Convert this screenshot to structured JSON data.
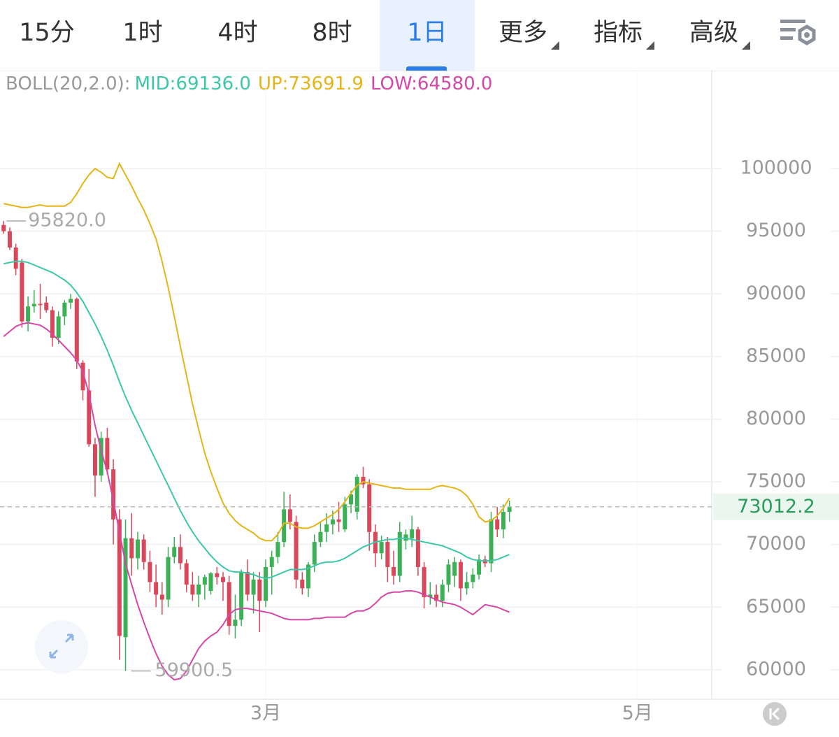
{
  "tabs": [
    "15分",
    "1时",
    "4时",
    "8时",
    "1日",
    "更多",
    "指标",
    "高级"
  ],
  "active_tab": "1日",
  "chart_data": {
    "type": "candlestick",
    "indicator": "BOLL(20,2.0):",
    "series": [
      {
        "name": "MID:69136.0",
        "color": "#3cc8a8",
        "values": [
          92400,
          92500,
          92600,
          92600,
          92500,
          92300,
          92100,
          91900,
          91700,
          91400,
          91100,
          90700,
          90100,
          89400,
          88500,
          87600,
          86600,
          85500,
          84300,
          83000,
          81800,
          80700,
          79700,
          78700,
          77700,
          76700,
          75700,
          74700,
          73700,
          72700,
          71800,
          71000,
          70300,
          69700,
          69100,
          68600,
          68200,
          67900,
          67800,
          67800,
          67700,
          67600,
          67400,
          67300,
          67400,
          67600,
          67800,
          68000,
          68000,
          68000,
          68100,
          68300,
          68500,
          68600,
          68600,
          68700,
          68900,
          69200,
          69500,
          69800,
          70000,
          70200,
          70300,
          70400,
          70400,
          70500,
          70500,
          70400,
          70300,
          70200,
          70100,
          70000,
          69900,
          69700,
          69500,
          69300,
          69000,
          68800,
          68700,
          68700,
          68700,
          68800,
          69000,
          69200
        ]
      },
      {
        "name": "UP:73691.9",
        "color": "#e6b416",
        "values": [
          97200,
          97100,
          97000,
          96900,
          96900,
          97000,
          97100,
          97000,
          97000,
          97000,
          97000,
          97300,
          98000,
          98800,
          99500,
          100000,
          99700,
          99300,
          99200,
          100400,
          99500,
          98600,
          97600,
          96700,
          95600,
          94400,
          92600,
          90500,
          88200,
          85800,
          83500,
          81200,
          79200,
          77300,
          75800,
          74500,
          73300,
          72500,
          71900,
          71500,
          71200,
          70900,
          70500,
          70300,
          70300,
          70800,
          71700,
          71700,
          71400,
          71300,
          71300,
          71500,
          71800,
          72100,
          72400,
          72800,
          73400,
          74100,
          74700,
          75000,
          74900,
          74800,
          74700,
          74600,
          74500,
          74500,
          74400,
          74400,
          74400,
          74400,
          74400,
          74600,
          74700,
          74600,
          74500,
          74300,
          73900,
          73200,
          72200,
          71800,
          71900,
          72300,
          72900,
          73700
        ]
      },
      {
        "name": "LOW:64580.0",
        "color": "#d548a8",
        "values": [
          86600,
          87000,
          87400,
          87600,
          87700,
          87600,
          87500,
          87200,
          86800,
          86300,
          85800,
          85300,
          84700,
          83800,
          82000,
          79500,
          77500,
          75800,
          73500,
          71000,
          68500,
          66800,
          65200,
          63800,
          62500,
          61300,
          60300,
          59600,
          59200,
          59300,
          59900,
          60800,
          61700,
          62300,
          62700,
          63000,
          63600,
          64400,
          64800,
          64900,
          64900,
          64800,
          64700,
          64600,
          64500,
          64300,
          64100,
          64000,
          64000,
          64000,
          64000,
          64100,
          64100,
          64200,
          64200,
          64200,
          64200,
          64500,
          64700,
          64700,
          64900,
          65300,
          65800,
          66100,
          66200,
          66200,
          66300,
          66300,
          66200,
          66000,
          65800,
          65600,
          65400,
          65300,
          65200,
          65000,
          64700,
          64400,
          64800,
          65200,
          65100,
          65000,
          64800,
          64600
        ]
      }
    ],
    "open": [
      95500,
      95000,
      93700,
      92500,
      87800,
      89000,
      89200,
      89300,
      88700,
      86500,
      88200,
      89300,
      89600,
      84500,
      82300,
      78000,
      75500,
      78500,
      76000,
      72000,
      62600,
      70500,
      68900,
      70400,
      68600,
      67000,
      66000,
      65600,
      69000,
      69800,
      68500,
      66800,
      66000,
      66800,
      66300,
      67700,
      67400,
      67000,
      63500,
      64000,
      67800,
      66000,
      67200,
      65500,
      68200,
      69000,
      70200,
      72800,
      71800,
      67200,
      66500,
      68400,
      70200,
      71000,
      71600,
      72000,
      71200,
      73200,
      72600,
      75400,
      74800,
      71000,
      69300,
      70200,
      68200,
      67500,
      70300,
      70500,
      71200,
      68200,
      65800,
      66000,
      65500,
      66800,
      67500,
      68600,
      66500,
      67000,
      67600,
      68800,
      68500,
      72000,
      71200,
      72600
    ],
    "high": [
      95820,
      95300,
      94000,
      92800,
      89800,
      90300,
      90800,
      89800,
      89000,
      88600,
      89500,
      90000,
      89700,
      84700,
      84000,
      78500,
      79000,
      79300,
      76800,
      72800,
      72000,
      72500,
      71000,
      70800,
      69500,
      68400,
      67000,
      69800,
      70600,
      70800,
      68800,
      67800,
      67500,
      67600,
      67800,
      68200,
      67800,
      67500,
      66000,
      68000,
      68800,
      67800,
      67800,
      68800,
      69500,
      71000,
      74200,
      74000,
      72300,
      67800,
      68600,
      70800,
      71800,
      72500,
      72700,
      73400,
      73800,
      74300,
      75600,
      76200,
      75200,
      71600,
      70700,
      70600,
      69500,
      71800,
      71200,
      72300,
      71400,
      68600,
      67000,
      66800,
      67200,
      68800,
      69000,
      68800,
      67800,
      68100,
      69200,
      69100,
      72600,
      73000,
      73200,
      73500
    ],
    "low": [
      94800,
      93500,
      91500,
      87300,
      87000,
      88500,
      88000,
      88500,
      85800,
      86000,
      87500,
      88800,
      84000,
      81500,
      77800,
      73800,
      75000,
      75600,
      70000,
      60800,
      59900.5,
      67500,
      68000,
      68000,
      66200,
      65000,
      64400,
      65000,
      68500,
      68000,
      66200,
      65500,
      65000,
      65600,
      66000,
      66800,
      65500,
      62800,
      62500,
      63500,
      65500,
      64500,
      63000,
      65000,
      66000,
      68500,
      69800,
      71200,
      66500,
      66000,
      65800,
      67800,
      69800,
      70200,
      70800,
      71000,
      71000,
      72500,
      72000,
      74500,
      69500,
      68200,
      68800,
      67000,
      66800,
      67000,
      69600,
      69800,
      67500,
      64900,
      65200,
      65000,
      65000,
      66200,
      66600,
      65500,
      66000,
      66500,
      67200,
      68200,
      67800,
      70600,
      70500,
      71800
    ],
    "close": [
      95000,
      93700,
      92000,
      87800,
      89000,
      89200,
      89100,
      88700,
      86500,
      88200,
      89300,
      89600,
      84600,
      82300,
      78000,
      75500,
      78500,
      76000,
      72000,
      62700,
      70500,
      68900,
      70400,
      68600,
      67000,
      66000,
      65600,
      69000,
      69800,
      68500,
      66800,
      66000,
      66800,
      67400,
      67700,
      67400,
      67000,
      63500,
      64000,
      67800,
      66000,
      67200,
      65500,
      68200,
      69000,
      70200,
      72800,
      71800,
      67200,
      66500,
      68400,
      70200,
      71000,
      71600,
      72000,
      71800,
      73200,
      74000,
      75400,
      74800,
      71000,
      69300,
      70200,
      68200,
      67500,
      71000,
      70800,
      71200,
      68200,
      65800,
      66000,
      65500,
      66800,
      68400,
      68600,
      66500,
      67000,
      67600,
      68800,
      68500,
      72000,
      71200,
      72600,
      73000
    ],
    "up_color": "#3cb054",
    "down_color": "#d9475a",
    "high_label": {
      "value": 95820,
      "label": "95820.0"
    },
    "low_label": 59900.5,
    "last_price": 73012.2,
    "xlim": [
      -0.6,
      116.2
    ],
    "xticks": [
      {
        "value": 43,
        "label": "3月"
      },
      {
        "value": 104,
        "label": "5月"
      }
    ],
    "ylim": [
      57650,
      107870
    ],
    "yticks": [
      60000,
      65000,
      70000,
      75000,
      80000,
      85000,
      90000,
      95000,
      100000
    ],
    "grid": true
  }
}
